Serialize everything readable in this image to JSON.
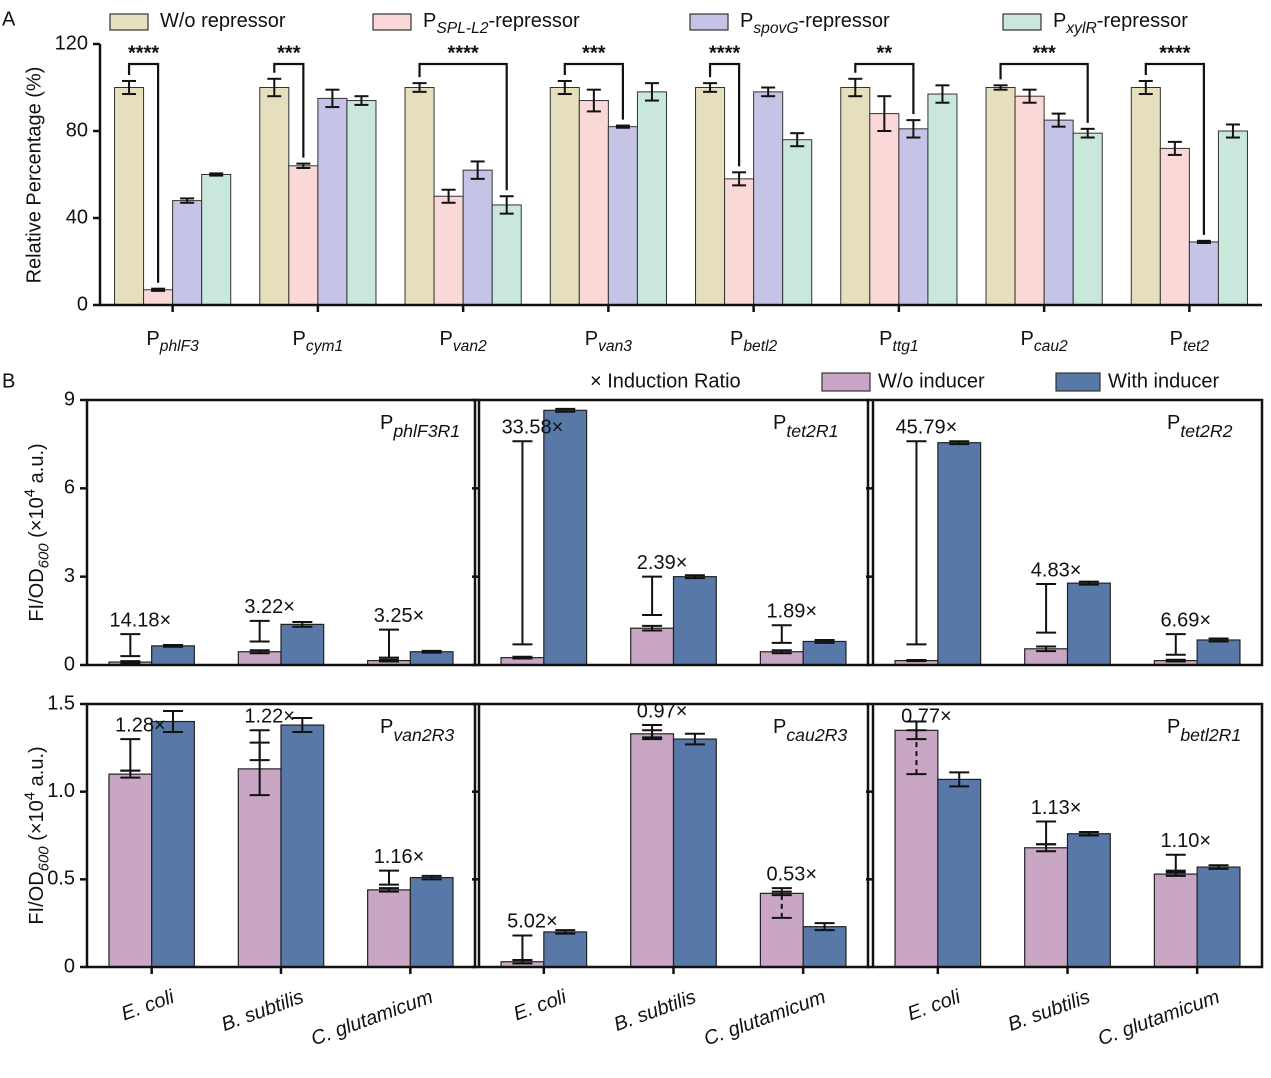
{
  "chart_data": [
    {
      "type": "bar",
      "panel_label": "A",
      "ylabel": "Relative Percentage (%)",
      "categories": [
        [
          "P",
          "phlF3"
        ],
        [
          "P",
          "cym1"
        ],
        [
          "P",
          "van2"
        ],
        [
          "P",
          "van3"
        ],
        [
          "P",
          "betl2"
        ],
        [
          "P",
          "ttg1"
        ],
        [
          "P",
          "cau2"
        ],
        [
          "P",
          "tet2"
        ]
      ],
      "series": [
        {
          "name": [
            "W/o repressor"
          ],
          "color": "#e5dfbe",
          "values": [
            100,
            100,
            100,
            100,
            100,
            100,
            100,
            100
          ],
          "errors": [
            3,
            4,
            2,
            3,
            2,
            4,
            1,
            3
          ]
        },
        {
          "name": [
            "P",
            "SPL-L2",
            "-repressor"
          ],
          "color": "#fbd8d8",
          "values": [
            7,
            64,
            50,
            94,
            58,
            88,
            96,
            72
          ],
          "errors": [
            0.5,
            1,
            3,
            5,
            3,
            8,
            3,
            3
          ]
        },
        {
          "name": [
            "P",
            "spovG",
            "-repressor"
          ],
          "color": "#c5c3e6",
          "values": [
            48,
            95,
            62,
            82,
            98,
            81,
            85,
            29
          ],
          "errors": [
            1,
            4,
            4,
            0.5,
            2,
            4,
            3,
            0.5
          ]
        },
        {
          "name": [
            "P",
            "xylR",
            "-repressor"
          ],
          "color": "#c9e7da",
          "values": [
            60,
            94,
            46,
            98,
            76,
            97,
            79,
            80
          ],
          "errors": [
            0.5,
            2,
            4,
            4,
            3,
            4,
            2,
            3
          ]
        }
      ],
      "significance": [
        {
          "category": 0,
          "to_series": 1,
          "label": "****"
        },
        {
          "category": 1,
          "to_series": 1,
          "label": "***"
        },
        {
          "category": 2,
          "to_series": 3,
          "label": "****"
        },
        {
          "category": 3,
          "to_series": 2,
          "label": "***"
        },
        {
          "category": 4,
          "to_series": 1,
          "label": "****"
        },
        {
          "category": 5,
          "to_series": 2,
          "label": "**"
        },
        {
          "category": 6,
          "to_series": 3,
          "label": "***"
        },
        {
          "category": 7,
          "to_series": 2,
          "label": "****"
        }
      ],
      "ylim": [
        0,
        120
      ],
      "yticks": [
        0,
        40,
        80,
        120
      ]
    },
    {
      "type": "bar",
      "panel_label": "B",
      "ylabel": [
        "FI/OD",
        "600",
        " (×10",
        "4",
        " a.u.)"
      ],
      "promoter": [
        "P",
        "phlF3R1"
      ],
      "categories": [
        null,
        null,
        null
      ],
      "series": [
        {
          "name": "W/o inducer",
          "color": "#c9a7c4",
          "values": [
            0.1,
            0.45,
            0.15
          ],
          "errors": [
            0.03,
            0.05,
            0.03
          ]
        },
        {
          "name": "With inducer",
          "color": "#5878a8",
          "values": [
            0.65,
            1.38,
            0.45
          ],
          "errors": [
            0.03,
            0.08,
            0.03
          ]
        },
        {
          "name": "× Induction Ratio",
          "values": [
            14.18,
            3.22,
            3.25
          ],
          "value_labels": [
            "14.18×",
            "3.22×",
            "3.25×"
          ],
          "ranges": [
            [
              0.3,
              1.05
            ],
            [
              0.8,
              1.5
            ],
            [
              0.25,
              1.2
            ]
          ]
        }
      ],
      "ylim": [
        0,
        9
      ],
      "yticks": [
        0,
        3,
        6,
        9
      ]
    },
    {
      "type": "bar",
      "promoter": [
        "P",
        "tet2R1"
      ],
      "categories": [
        null,
        null,
        null
      ],
      "series": [
        {
          "color": "#c9a7c4",
          "values": [
            0.25,
            1.25,
            0.45
          ],
          "errors": [
            0.03,
            0.08,
            0.05
          ]
        },
        {
          "color": "#5878a8",
          "values": [
            8.65,
            3.0,
            0.8
          ],
          "errors": [
            0.05,
            0.05,
            0.05
          ]
        },
        {
          "values": [
            33.58,
            2.39,
            1.89
          ],
          "value_labels": [
            "33.58×",
            "2.39×",
            "1.89×"
          ],
          "ranges": [
            [
              0.7,
              7.6
            ],
            [
              1.7,
              3.0
            ],
            [
              0.75,
              1.35
            ]
          ]
        }
      ],
      "ylim": [
        0,
        9
      ],
      "yticks": [
        0,
        3,
        6,
        9
      ],
      "show_ytick_labels": false
    },
    {
      "type": "bar",
      "promoter": [
        "P",
        "tet2R2"
      ],
      "categories": [
        null,
        null,
        null
      ],
      "series": [
        {
          "color": "#c9a7c4",
          "values": [
            0.15,
            0.55,
            0.15
          ],
          "errors": [
            0.02,
            0.08,
            0.03
          ]
        },
        {
          "color": "#5878a8",
          "values": [
            7.55,
            2.78,
            0.85
          ],
          "errors": [
            0.05,
            0.05,
            0.05
          ]
        },
        {
          "values": [
            45.79,
            4.83,
            6.69
          ],
          "value_labels": [
            "45.79×",
            "4.83×",
            "6.69×"
          ],
          "ranges": [
            [
              0.7,
              7.6
            ],
            [
              1.1,
              2.75
            ],
            [
              0.35,
              1.05
            ]
          ]
        }
      ],
      "ylim": [
        0,
        9
      ],
      "yticks": [
        0,
        3,
        6,
        9
      ],
      "show_ytick_labels": false
    },
    {
      "type": "bar",
      "ylabel": [
        "FI/OD",
        "600",
        " (×10",
        "4",
        " a.u.)"
      ],
      "promoter": [
        "P",
        "van2R3"
      ],
      "categories": [
        "E. coli",
        "B. subtilis",
        "C. glutamicum"
      ],
      "series": [
        {
          "color": "#c9a7c4",
          "values": [
            1.1,
            1.13,
            0.44
          ],
          "errors": [
            0.02,
            0.15,
            0.01
          ]
        },
        {
          "color": "#5878a8",
          "values": [
            1.4,
            1.38,
            0.51
          ],
          "errors": [
            0.06,
            0.04,
            0.01
          ]
        },
        {
          "values": [
            1.28,
            1.22,
            1.16
          ],
          "value_labels": [
            "1.28×",
            "1.22×",
            "1.16×"
          ],
          "ranges": [
            [
              1.12,
              1.3
            ],
            [
              1.18,
              1.35
            ],
            [
              0.47,
              0.55
            ]
          ]
        }
      ],
      "ylim": [
        0,
        1.5
      ],
      "yticks": [
        0,
        0.5,
        {
          "value": 1,
          "label": "1.0"
        },
        1.5
      ]
    },
    {
      "type": "bar",
      "promoter": [
        "P",
        "cau2R3"
      ],
      "categories": [
        "E. coli",
        "B. subtilis",
        "C. glutamicum"
      ],
      "series": [
        {
          "color": "#c9a7c4",
          "values": [
            0.03,
            1.33,
            0.42
          ],
          "errors": [
            0.01,
            0.02,
            0.01
          ]
        },
        {
          "color": "#5878a8",
          "values": [
            0.2,
            1.3,
            0.23
          ],
          "errors": [
            0.01,
            0.03,
            0.02
          ]
        },
        {
          "values": [
            5.02,
            0.97,
            0.53
          ],
          "value_labels": [
            "5.02×",
            "0.97×",
            "0.53×"
          ],
          "ranges": [
            [
              0.04,
              0.18
            ],
            [
              1.3,
              1.38
            ],
            [
              0.28,
              0.45
            ]
          ]
        }
      ],
      "ylim": [
        0,
        1.5
      ],
      "yticks": [
        0,
        0.5,
        {
          "value": 1,
          "label": "1.0"
        },
        1.5
      ],
      "show_ytick_labels": false
    },
    {
      "type": "bar",
      "promoter": [
        "P",
        "betl2R1"
      ],
      "categories": [
        "E. coli",
        "B. subtilis",
        "C. glutamicum"
      ],
      "series": [
        {
          "color": "#c9a7c4",
          "values": [
            1.35,
            0.68,
            0.53
          ],
          "errors": [
            0.05,
            0.02,
            0.01
          ]
        },
        {
          "color": "#5878a8",
          "values": [
            1.07,
            0.76,
            0.57
          ],
          "errors": [
            0.04,
            0.01,
            0.01
          ]
        },
        {
          "values": [
            0.77,
            1.13,
            1.1
          ],
          "value_labels": [
            "0.77×",
            "1.13×",
            "1.10×"
          ],
          "ranges": [
            [
              1.1,
              1.35
            ],
            [
              0.7,
              0.83
            ],
            [
              0.55,
              0.64
            ]
          ]
        }
      ],
      "ylim": [
        0,
        1.5
      ],
      "yticks": [
        0,
        0.5,
        {
          "value": 1,
          "label": "1.0"
        },
        1.5
      ],
      "show_ytick_labels": false
    }
  ]
}
